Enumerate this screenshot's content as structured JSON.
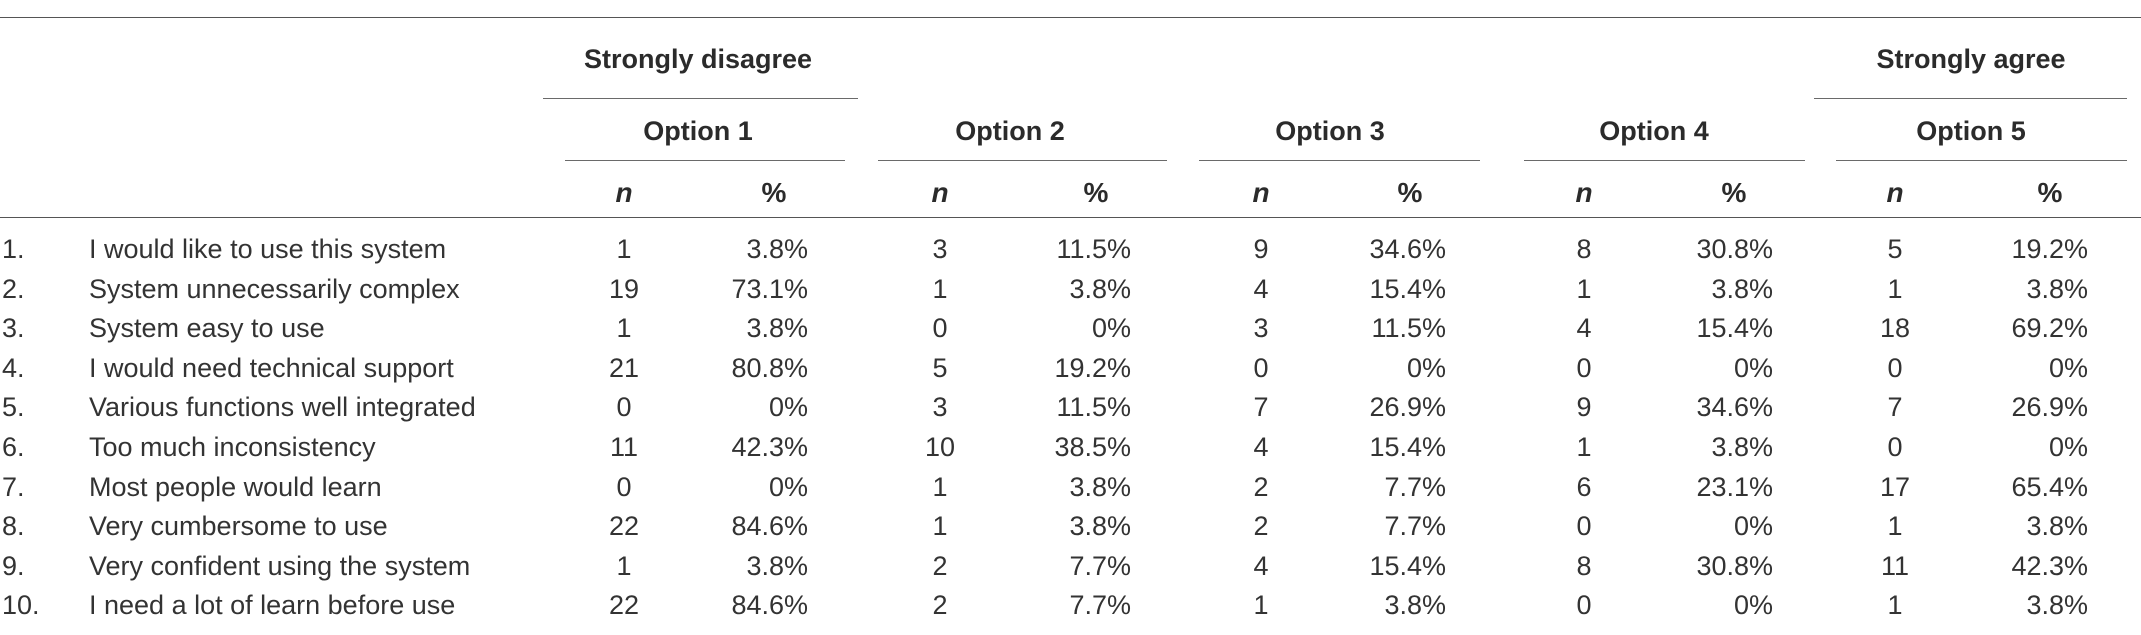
{
  "group_headers": {
    "left": "Strongly disagree",
    "right": "Strongly agree"
  },
  "options": [
    "Option 1",
    "Option 2",
    "Option 3",
    "Option 4",
    "Option 5"
  ],
  "subheaders": {
    "n": "n",
    "pct": "%"
  },
  "rows": [
    {
      "num": "1.",
      "label": "I would like to use this system",
      "cells": [
        [
          "1",
          "3.8%"
        ],
        [
          "3",
          "11.5%"
        ],
        [
          "9",
          "34.6%"
        ],
        [
          "8",
          "30.8%"
        ],
        [
          "5",
          "19.2%"
        ]
      ]
    },
    {
      "num": "2.",
      "label": "System unnecessarily complex",
      "cells": [
        [
          "19",
          "73.1%"
        ],
        [
          "1",
          "3.8%"
        ],
        [
          "4",
          "15.4%"
        ],
        [
          "1",
          "3.8%"
        ],
        [
          "1",
          "3.8%"
        ]
      ]
    },
    {
      "num": "3.",
      "label": "System easy to use",
      "cells": [
        [
          "1",
          "3.8%"
        ],
        [
          "0",
          "0%"
        ],
        [
          "3",
          "11.5%"
        ],
        [
          "4",
          "15.4%"
        ],
        [
          "18",
          "69.2%"
        ]
      ]
    },
    {
      "num": "4.",
      "label": "I would need technical support",
      "cells": [
        [
          "21",
          "80.8%"
        ],
        [
          "5",
          "19.2%"
        ],
        [
          "0",
          "0%"
        ],
        [
          "0",
          "0%"
        ],
        [
          "0",
          "0%"
        ]
      ]
    },
    {
      "num": "5.",
      "label": "Various functions well integrated",
      "cells": [
        [
          "0",
          "0%"
        ],
        [
          "3",
          "11.5%"
        ],
        [
          "7",
          "26.9%"
        ],
        [
          "9",
          "34.6%"
        ],
        [
          "7",
          "26.9%"
        ]
      ]
    },
    {
      "num": "6.",
      "label": "Too much inconsistency",
      "cells": [
        [
          "11",
          "42.3%"
        ],
        [
          "10",
          "38.5%"
        ],
        [
          "4",
          "15.4%"
        ],
        [
          "1",
          "3.8%"
        ],
        [
          "0",
          "0%"
        ]
      ]
    },
    {
      "num": "7.",
      "label": "Most people would learn",
      "cells": [
        [
          "0",
          "0%"
        ],
        [
          "1",
          "3.8%"
        ],
        [
          "2",
          "7.7%"
        ],
        [
          "6",
          "23.1%"
        ],
        [
          "17",
          "65.4%"
        ]
      ]
    },
    {
      "num": "8.",
      "label": "Very cumbersome to use",
      "cells": [
        [
          "22",
          "84.6%"
        ],
        [
          "1",
          "3.8%"
        ],
        [
          "2",
          "7.7%"
        ],
        [
          "0",
          "0%"
        ],
        [
          "1",
          "3.8%"
        ]
      ]
    },
    {
      "num": "9.",
      "label": "Very confident using the system",
      "cells": [
        [
          "1",
          "3.8%"
        ],
        [
          "2",
          "7.7%"
        ],
        [
          "4",
          "15.4%"
        ],
        [
          "8",
          "30.8%"
        ],
        [
          "11",
          "42.3%"
        ]
      ]
    },
    {
      "num": "10.",
      "label": "I need a lot of learn before use",
      "cells": [
        [
          "22",
          "84.6%"
        ],
        [
          "2",
          "7.7%"
        ],
        [
          "1",
          "3.8%"
        ],
        [
          "0",
          "0%"
        ],
        [
          "1",
          "3.8%"
        ]
      ]
    }
  ]
}
